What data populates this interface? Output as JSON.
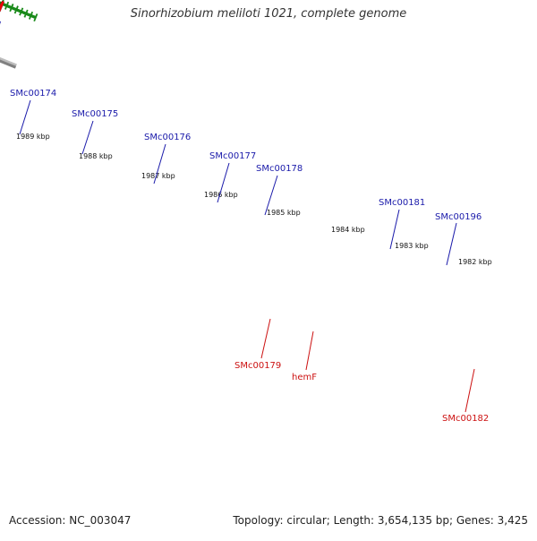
{
  "title": "Sinorhizobium meliloti 1021, complete genome",
  "footer": {
    "accession": "Accession: NC_003047",
    "summary": "Topology: circular; Length: 3,654,135 bp; Genes: 3,425"
  },
  "ticks": [
    "1989 kbp",
    "1988 kbp",
    "1987 kbp",
    "1986 kbp",
    "1985 kbp",
    "1984 kbp",
    "1983 kbp",
    "1982 kbp"
  ],
  "top_labels": [
    "SMc00174",
    "SMc00175",
    "SMc00176",
    "SMc00177",
    "SMc00178",
    "SMc00181",
    "SMc00196"
  ],
  "bottom_labels": [
    "SMc00179",
    "hemF",
    "SMc00182"
  ],
  "colors": {
    "navy": "#101070",
    "blue": "#1010e8",
    "red": "#e80808",
    "orange": "#f08a00",
    "gray": "#c0c0c0",
    "backbone": "#808080",
    "tick_green": "#1a8a1a",
    "label_blue": "#1a1aaa",
    "label_red": "#cc1111"
  }
}
